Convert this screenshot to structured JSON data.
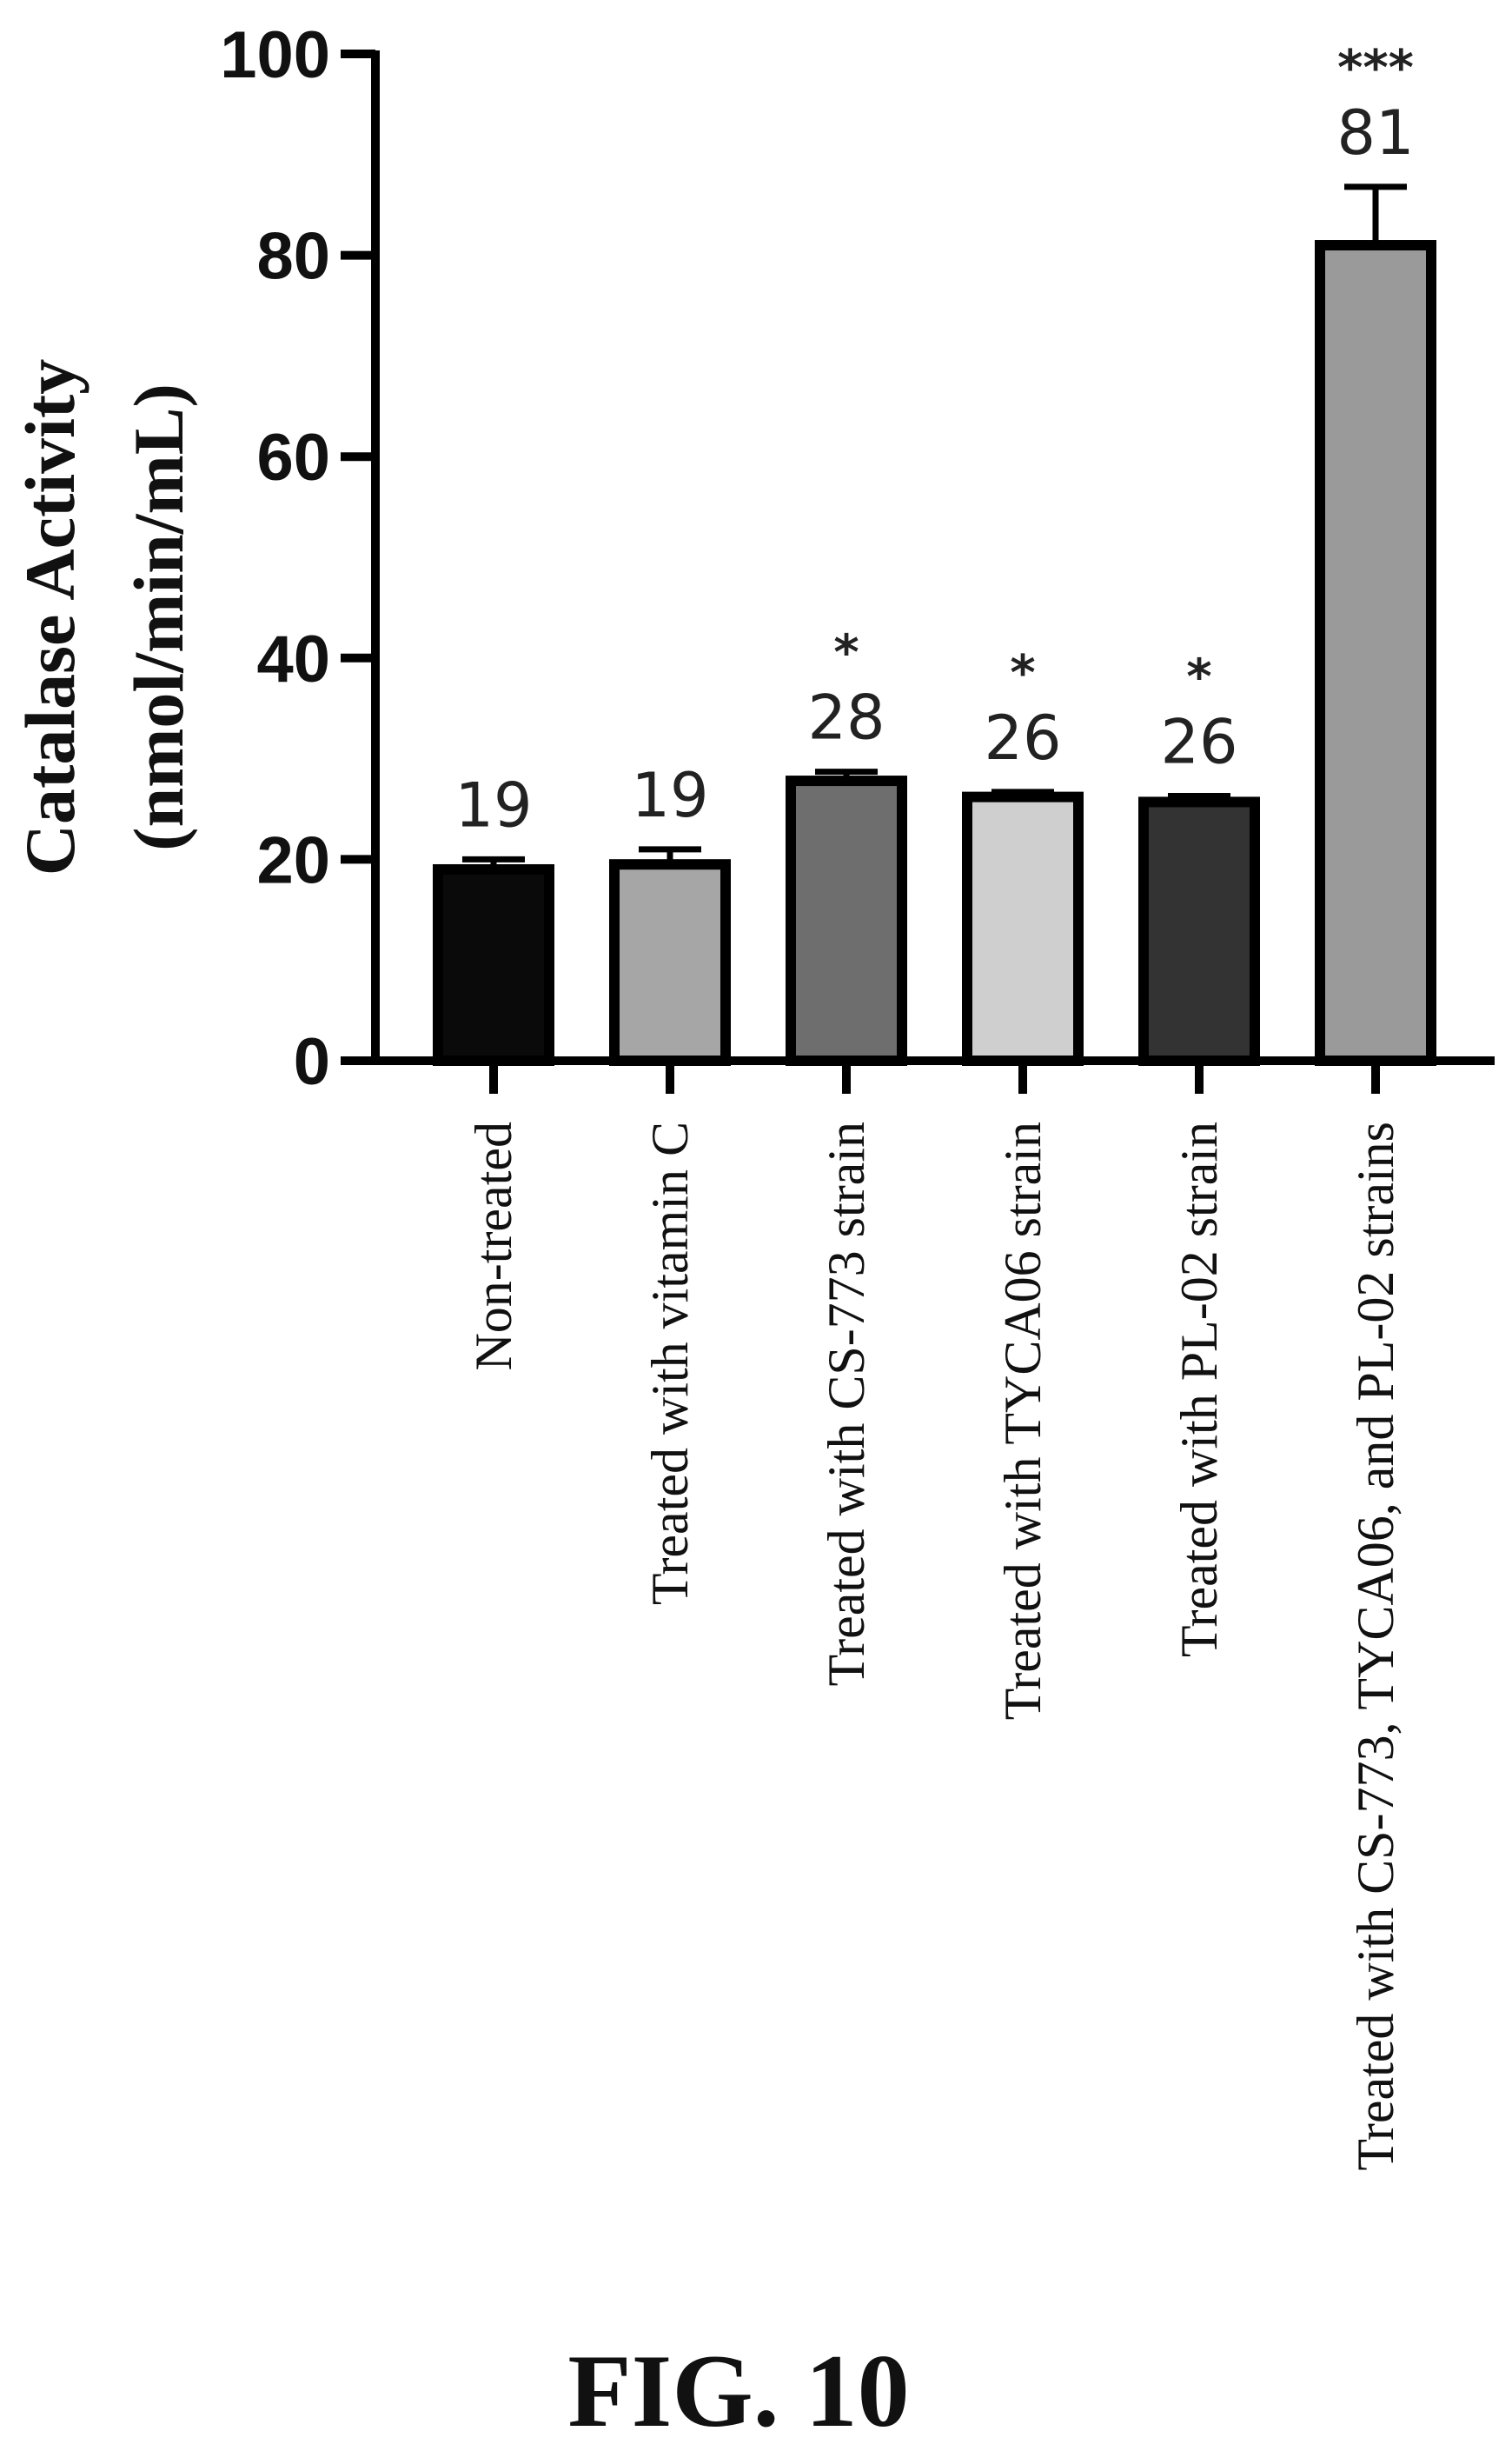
{
  "figure_label": "FIG. 10",
  "chart_data": {
    "type": "bar",
    "ylabel_line1": "Catalase Activity",
    "ylabel_line2": "(nmol/min/mL)",
    "ylim": [
      0,
      100
    ],
    "yticks": [
      0,
      20,
      40,
      60,
      80,
      100
    ],
    "categories": [
      "Non-treated",
      "Treated with vitamin C",
      "Treated with CS-773 strain",
      "Treated with TYCA06 strain",
      "Treated with PL-02 strain",
      "Treated with CS-773, TYCA06, and PL-02 strains"
    ],
    "values": [
      19,
      19.5,
      27.8,
      26.2,
      25.7,
      81
    ],
    "errors": [
      1.0,
      1.5,
      0.9,
      0.5,
      0.6,
      5.8
    ],
    "value_labels": [
      "19",
      "19",
      "28",
      "26",
      "26",
      "81"
    ],
    "significance": [
      "",
      "",
      "*",
      "*",
      "*",
      "***"
    ],
    "bar_colors": [
      "#0a0a0a",
      "#a6a6a6",
      "#6e6e6e",
      "#cfcfcf",
      "#333333",
      "#9a9a9a"
    ]
  }
}
